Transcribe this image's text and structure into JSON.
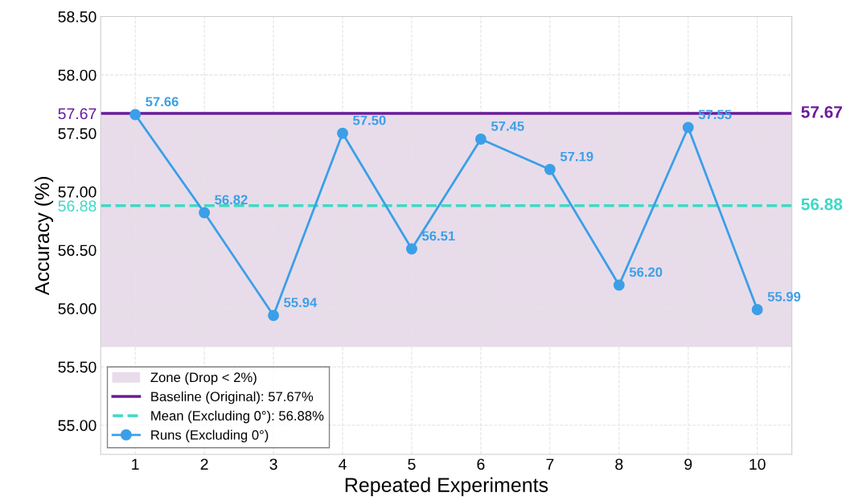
{
  "chart_data": {
    "type": "line",
    "xlabel": "Repeated Experiments",
    "ylabel": "Accuracy (%)",
    "x": [
      1,
      2,
      3,
      4,
      5,
      6,
      7,
      8,
      9,
      10
    ],
    "series": [
      {
        "name": "Runs (Excluding 0°)",
        "color": "#3b9fe8",
        "values": [
          57.66,
          56.82,
          55.94,
          57.5,
          56.51,
          57.45,
          57.19,
          56.2,
          57.55,
          55.99
        ]
      }
    ],
    "value_labels": [
      "57.66",
      "56.82",
      "55.94",
      "57.50",
      "56.51",
      "57.45",
      "57.19",
      "56.20",
      "57.55",
      "55.99"
    ],
    "marker": "circle",
    "line_style": "solid",
    "xlim": [
      0.5,
      10.5
    ],
    "xticks": [
      1,
      2,
      3,
      4,
      5,
      6,
      7,
      8,
      9,
      10
    ],
    "ylim": [
      54.75,
      58.5
    ],
    "yticks": [
      {
        "value": 55.0,
        "label": "55.00"
      },
      {
        "value": 55.5,
        "label": "55.50"
      },
      {
        "value": 56.0,
        "label": "56.00"
      },
      {
        "value": 56.5,
        "label": "56.50"
      },
      {
        "value": 56.88,
        "label": "56.88"
      },
      {
        "value": 57.0,
        "label": "57.00"
      },
      {
        "value": 57.5,
        "label": "57.50"
      },
      {
        "value": 57.67,
        "label": "57.67"
      },
      {
        "value": 58.0,
        "label": "58.00"
      },
      {
        "value": 58.5,
        "label": "58.50"
      }
    ],
    "ref_lines": [
      {
        "axis": "y",
        "value": 57.67,
        "label": "Baseline (Original): 57.67%",
        "color": "#6a1b9a",
        "line_style": "solid"
      },
      {
        "axis": "y",
        "value": 56.88,
        "label": "Mean (Excluding 0°): 56.88%",
        "color": "#3fd9c4",
        "line_style": "dashed"
      }
    ],
    "bands": [
      {
        "axis": "y",
        "from": 55.67,
        "to": 57.67,
        "label": "Zone (Drop < 2%)",
        "color": "#e8dcea"
      }
    ],
    "annotations": [
      "57.67",
      "56.88"
    ],
    "grid": true,
    "legend": "bottom left"
  }
}
